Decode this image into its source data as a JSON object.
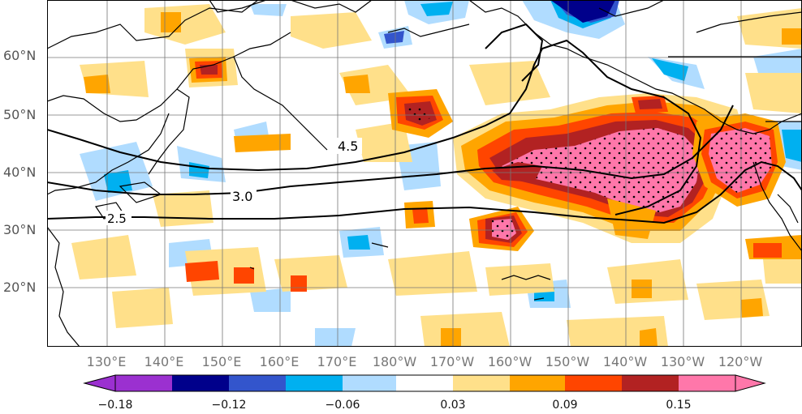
{
  "map": {
    "lat_labels": [
      "60°N",
      "50°N",
      "40°N",
      "30°N",
      "20°N"
    ],
    "lon_labels": [
      "130°E",
      "140°E",
      "150°E",
      "160°E",
      "170°E",
      "180°W",
      "170°W",
      "160°W",
      "150°W",
      "140°W",
      "130°W",
      "120°W"
    ],
    "contour_labels": [
      "4.5",
      "3.0",
      "2.5"
    ]
  },
  "colorbar": {
    "tick_labels": [
      "−0.18",
      "−0.12",
      "−0.06",
      "0.03",
      "0.09",
      "0.15"
    ],
    "colors": [
      "#9b30d0",
      "#00008b",
      "#3355cc",
      "#00b0f0",
      "#b0dcff",
      "#ffffff",
      "#ffe08a",
      "#ffa500",
      "#ff4500",
      "#b22222",
      "#ff77aa"
    ]
  }
}
